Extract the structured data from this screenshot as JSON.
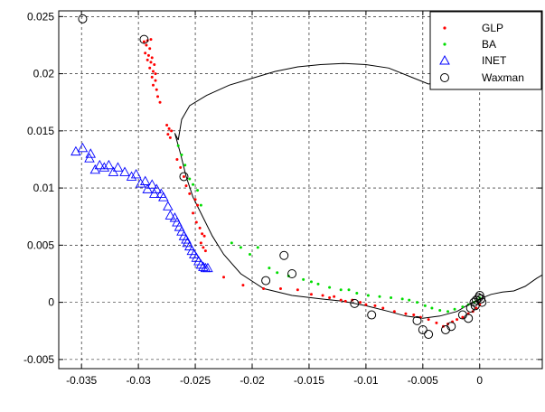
{
  "chart_data": {
    "type": "scatter",
    "title": "",
    "xlabel": "",
    "ylabel": "",
    "xlim": [
      -0.037,
      0.0055
    ],
    "ylim": [
      -0.0058,
      0.0255
    ],
    "xticks": [
      -0.035,
      -0.03,
      -0.025,
      -0.02,
      -0.015,
      -0.01,
      -0.005,
      0
    ],
    "xtick_labels": [
      "-0.035",
      "-0.03",
      "-0.025",
      "-0.02",
      "-0.015",
      "-0.01",
      "-0.005",
      "0"
    ],
    "yticks": [
      -0.005,
      0,
      0.005,
      0.01,
      0.015,
      0.02,
      0.025
    ],
    "ytick_labels": [
      "-0.005",
      "0",
      "0.005",
      "0.01",
      "0.015",
      "0.02",
      "0.025"
    ],
    "grid": true,
    "legend_position": "top-right",
    "colors": {
      "GLP": "#ff0000",
      "BA": "#00dd00",
      "INET": "#0000ff",
      "Waxman": "#000000",
      "curve": "#000000"
    },
    "series": [
      {
        "name": "GLP",
        "marker": "dot",
        "points": [
          [
            -0.0295,
            0.0228
          ],
          [
            -0.0292,
            0.0229
          ],
          [
            -0.0289,
            0.023
          ],
          [
            -0.0293,
            0.0225
          ],
          [
            -0.029,
            0.0222
          ],
          [
            -0.0294,
            0.0218
          ],
          [
            -0.0291,
            0.0216
          ],
          [
            -0.0288,
            0.0214
          ],
          [
            -0.0292,
            0.0212
          ],
          [
            -0.0289,
            0.021
          ],
          [
            -0.0286,
            0.0208
          ],
          [
            -0.029,
            0.0205
          ],
          [
            -0.0287,
            0.0202
          ],
          [
            -0.0285,
            0.02
          ],
          [
            -0.0288,
            0.0197
          ],
          [
            -0.0285,
            0.0194
          ],
          [
            -0.0287,
            0.019
          ],
          [
            -0.0284,
            0.0186
          ],
          [
            -0.0283,
            0.018
          ],
          [
            -0.0281,
            0.0175
          ],
          [
            -0.0275,
            0.0155
          ],
          [
            -0.0273,
            0.0152
          ],
          [
            -0.0271,
            0.015
          ],
          [
            -0.0274,
            0.0147
          ],
          [
            -0.0272,
            0.0144
          ],
          [
            -0.0266,
            0.0125
          ],
          [
            -0.0263,
            0.0118
          ],
          [
            -0.026,
            0.011
          ],
          [
            -0.0258,
            0.0102
          ],
          [
            -0.0255,
            0.0095
          ],
          [
            -0.025,
            0.009
          ],
          [
            -0.0248,
            0.0085
          ],
          [
            -0.0252,
            0.0078
          ],
          [
            -0.0249,
            0.007
          ],
          [
            -0.0246,
            0.0065
          ],
          [
            -0.0244,
            0.006
          ],
          [
            -0.0242,
            0.0058
          ],
          [
            -0.0245,
            0.0052
          ],
          [
            -0.0243,
            0.0048
          ],
          [
            -0.0241,
            0.0045
          ],
          [
            -0.0225,
            0.0022
          ],
          [
            -0.0208,
            0.0015
          ],
          [
            -0.019,
            0.0012
          ],
          [
            -0.0175,
            0.0012
          ],
          [
            -0.016,
            0.0011
          ],
          [
            -0.0148,
            0.0007
          ],
          [
            -0.0138,
            0.0006
          ],
          [
            -0.0132,
            0.0004
          ],
          [
            -0.0128,
            0.0005
          ],
          [
            -0.0122,
            0.0002
          ],
          [
            -0.0118,
            0.0001
          ],
          [
            -0.0112,
            0.0002
          ],
          [
            -0.0105,
            0.0
          ],
          [
            -0.01,
            -0.0002
          ],
          [
            -0.0092,
            -0.0003
          ],
          [
            -0.0085,
            -0.0005
          ],
          [
            -0.0075,
            -0.0008
          ],
          [
            -0.0065,
            -0.001
          ],
          [
            -0.0058,
            -0.0011
          ],
          [
            -0.0052,
            -0.0013
          ],
          [
            -0.0045,
            -0.0015
          ],
          [
            -0.0038,
            -0.0018
          ],
          [
            -0.0032,
            -0.0021
          ],
          [
            -0.0028,
            -0.0019
          ],
          [
            -0.0024,
            -0.0017
          ],
          [
            -0.002,
            -0.0015
          ],
          [
            -0.0015,
            -0.0013
          ],
          [
            -0.001,
            -0.001
          ],
          [
            -0.0006,
            -0.0008
          ],
          [
            -0.0003,
            -0.0005
          ],
          [
            0.0,
            -0.0002
          ]
        ]
      },
      {
        "name": "BA",
        "marker": "dot",
        "points": [
          [
            -0.0265,
            0.0137
          ],
          [
            -0.0262,
            0.0129
          ],
          [
            -0.0259,
            0.012
          ],
          [
            -0.0255,
            0.0108
          ],
          [
            -0.0252,
            0.0103
          ],
          [
            -0.0248,
            0.0098
          ],
          [
            -0.0245,
            0.0085
          ],
          [
            -0.0218,
            0.0052
          ],
          [
            -0.021,
            0.0048
          ],
          [
            -0.0202,
            0.0042
          ],
          [
            -0.0195,
            0.0048
          ],
          [
            -0.0185,
            0.003
          ],
          [
            -0.0178,
            0.0026
          ],
          [
            -0.0168,
            0.0023
          ],
          [
            -0.0155,
            0.002
          ],
          [
            -0.0148,
            0.0018
          ],
          [
            -0.0142,
            0.0016
          ],
          [
            -0.0132,
            0.0013
          ],
          [
            -0.0122,
            0.0011
          ],
          [
            -0.0115,
            0.0011
          ],
          [
            -0.0108,
            0.0008
          ],
          [
            -0.0098,
            0.0006
          ],
          [
            -0.0088,
            0.0005
          ],
          [
            -0.0078,
            0.0004
          ],
          [
            -0.0068,
            0.0003
          ],
          [
            -0.0062,
            0.0002
          ],
          [
            -0.0055,
            0.0
          ],
          [
            -0.0048,
            -0.0003
          ],
          [
            -0.0042,
            -0.0005
          ],
          [
            -0.0035,
            -0.0007
          ],
          [
            -0.0028,
            -0.0008
          ],
          [
            -0.0022,
            -0.0006
          ],
          [
            -0.0015,
            -0.0004
          ],
          [
            -0.001,
            -0.0002
          ],
          [
            -0.0005,
            0.0
          ],
          [
            -0.0002,
            0.0002
          ],
          [
            0.0,
            0.0004
          ]
        ]
      },
      {
        "name": "INET",
        "marker": "triangle",
        "points": [
          [
            -0.0355,
            0.0132
          ],
          [
            -0.0349,
            0.0135
          ],
          [
            -0.0343,
            0.0126
          ],
          [
            -0.0342,
            0.013
          ],
          [
            -0.0338,
            0.0116
          ],
          [
            -0.0334,
            0.012
          ],
          [
            -0.033,
            0.0118
          ],
          [
            -0.0326,
            0.012
          ],
          [
            -0.0322,
            0.0114
          ],
          [
            -0.0318,
            0.0118
          ],
          [
            -0.0312,
            0.0114
          ],
          [
            -0.0306,
            0.011
          ],
          [
            -0.0302,
            0.0112
          ],
          [
            -0.0298,
            0.0104
          ],
          [
            -0.0294,
            0.0106
          ],
          [
            -0.0288,
            0.0103
          ],
          [
            -0.0292,
            0.0099
          ],
          [
            -0.0284,
            0.0099
          ],
          [
            -0.0286,
            0.0095
          ],
          [
            -0.028,
            0.0095
          ],
          [
            -0.0278,
            0.0092
          ],
          [
            -0.0274,
            0.0084
          ],
          [
            -0.0272,
            0.0076
          ],
          [
            -0.0268,
            0.0074
          ],
          [
            -0.0266,
            0.007
          ],
          [
            -0.0264,
            0.0066
          ],
          [
            -0.0262,
            0.0062
          ],
          [
            -0.026,
            0.0058
          ],
          [
            -0.0258,
            0.0055
          ],
          [
            -0.0257,
            0.0052
          ],
          [
            -0.0255,
            0.0049
          ],
          [
            -0.0253,
            0.0045
          ],
          [
            -0.0251,
            0.0042
          ],
          [
            -0.0249,
            0.0039
          ],
          [
            -0.0247,
            0.0036
          ],
          [
            -0.0245,
            0.0033
          ],
          [
            -0.0243,
            0.0031
          ],
          [
            -0.0241,
            0.003
          ],
          [
            -0.0239,
            0.003
          ]
        ]
      },
      {
        "name": "Waxman",
        "marker": "circle",
        "points": [
          [
            -0.0349,
            0.0248
          ],
          [
            -0.0295,
            0.023
          ],
          [
            -0.026,
            0.011
          ],
          [
            -0.0188,
            0.0019
          ],
          [
            -0.0172,
            0.0041
          ],
          [
            -0.0165,
            0.0025
          ],
          [
            -0.011,
            -0.0001
          ],
          [
            -0.0095,
            -0.0011
          ],
          [
            -0.0055,
            -0.0016
          ],
          [
            -0.005,
            -0.0024
          ],
          [
            -0.0045,
            -0.0028
          ],
          [
            -0.003,
            -0.0024
          ],
          [
            -0.0025,
            -0.0021
          ],
          [
            -0.0015,
            -0.0011
          ],
          [
            -0.001,
            -0.0014
          ],
          [
            -0.0008,
            -0.0005
          ],
          [
            -0.0005,
            0.0
          ],
          [
            -0.0003,
            0.0002
          ],
          [
            -0.0001,
            0.0004
          ],
          [
            0.0,
            0.0006
          ],
          [
            0.0001,
            0.0003
          ],
          [
            0.0002,
            0.0
          ],
          [
            -0.0004,
            -0.0003
          ]
        ]
      }
    ],
    "curve": {
      "name": "",
      "points": [
        [
          -0.0265,
          0.0142
        ],
        [
          -0.0262,
          0.016
        ],
        [
          -0.0255,
          0.0172
        ],
        [
          -0.024,
          0.0181
        ],
        [
          -0.022,
          0.019
        ],
        [
          -0.02,
          0.0196
        ],
        [
          -0.018,
          0.0202
        ],
        [
          -0.016,
          0.0206
        ],
        [
          -0.014,
          0.0208
        ],
        [
          -0.012,
          0.0209
        ],
        [
          -0.01,
          0.0208
        ],
        [
          -0.008,
          0.0205
        ],
        [
          -0.006,
          0.0197
        ],
        [
          -0.0045,
          0.0191
        ],
        [
          -0.004,
          0.0192
        ],
        [
          -0.0034,
          0.0195
        ],
        [
          -0.0031,
          0.0198
        ],
        [
          -0.0022,
          0.0204
        ],
        [
          -0.001,
          0.0212
        ],
        [
          0.0,
          0.0218
        ],
        [
          0.001,
          0.0223
        ],
        [
          0.002,
          0.0231
        ],
        [
          0.003,
          0.0238
        ],
        [
          0.004,
          0.0246
        ],
        [
          0.005,
          0.0254
        ],
        [
          0.0055,
          0.0258
        ],
        null,
        [
          -0.0265,
          0.0142
        ],
        [
          -0.0268,
          0.0148
        ],
        [
          -0.0263,
          0.013
        ],
        [
          -0.0258,
          0.011
        ],
        [
          -0.0252,
          0.0092
        ],
        [
          -0.0247,
          0.0082
        ],
        [
          -0.0242,
          0.0072
        ],
        [
          -0.0235,
          0.0058
        ],
        [
          -0.0225,
          0.0042
        ],
        [
          -0.021,
          0.0025
        ],
        [
          -0.019,
          0.0012
        ],
        [
          -0.0165,
          0.0006
        ],
        [
          -0.014,
          0.0003
        ],
        [
          -0.012,
          0.0001
        ],
        [
          -0.01,
          -0.0003
        ],
        [
          -0.008,
          -0.0008
        ],
        [
          -0.0065,
          -0.0012
        ],
        [
          -0.005,
          -0.0014
        ],
        [
          -0.0035,
          -0.0012
        ],
        [
          -0.002,
          -0.0008
        ],
        [
          -0.001,
          -0.0002
        ],
        [
          0.0,
          0.0003
        ],
        [
          0.001,
          0.0007
        ],
        [
          0.002,
          0.0009
        ],
        [
          0.003,
          0.001
        ],
        [
          0.004,
          0.0014
        ],
        [
          0.005,
          0.0021
        ],
        [
          0.0055,
          0.0024
        ]
      ]
    }
  }
}
